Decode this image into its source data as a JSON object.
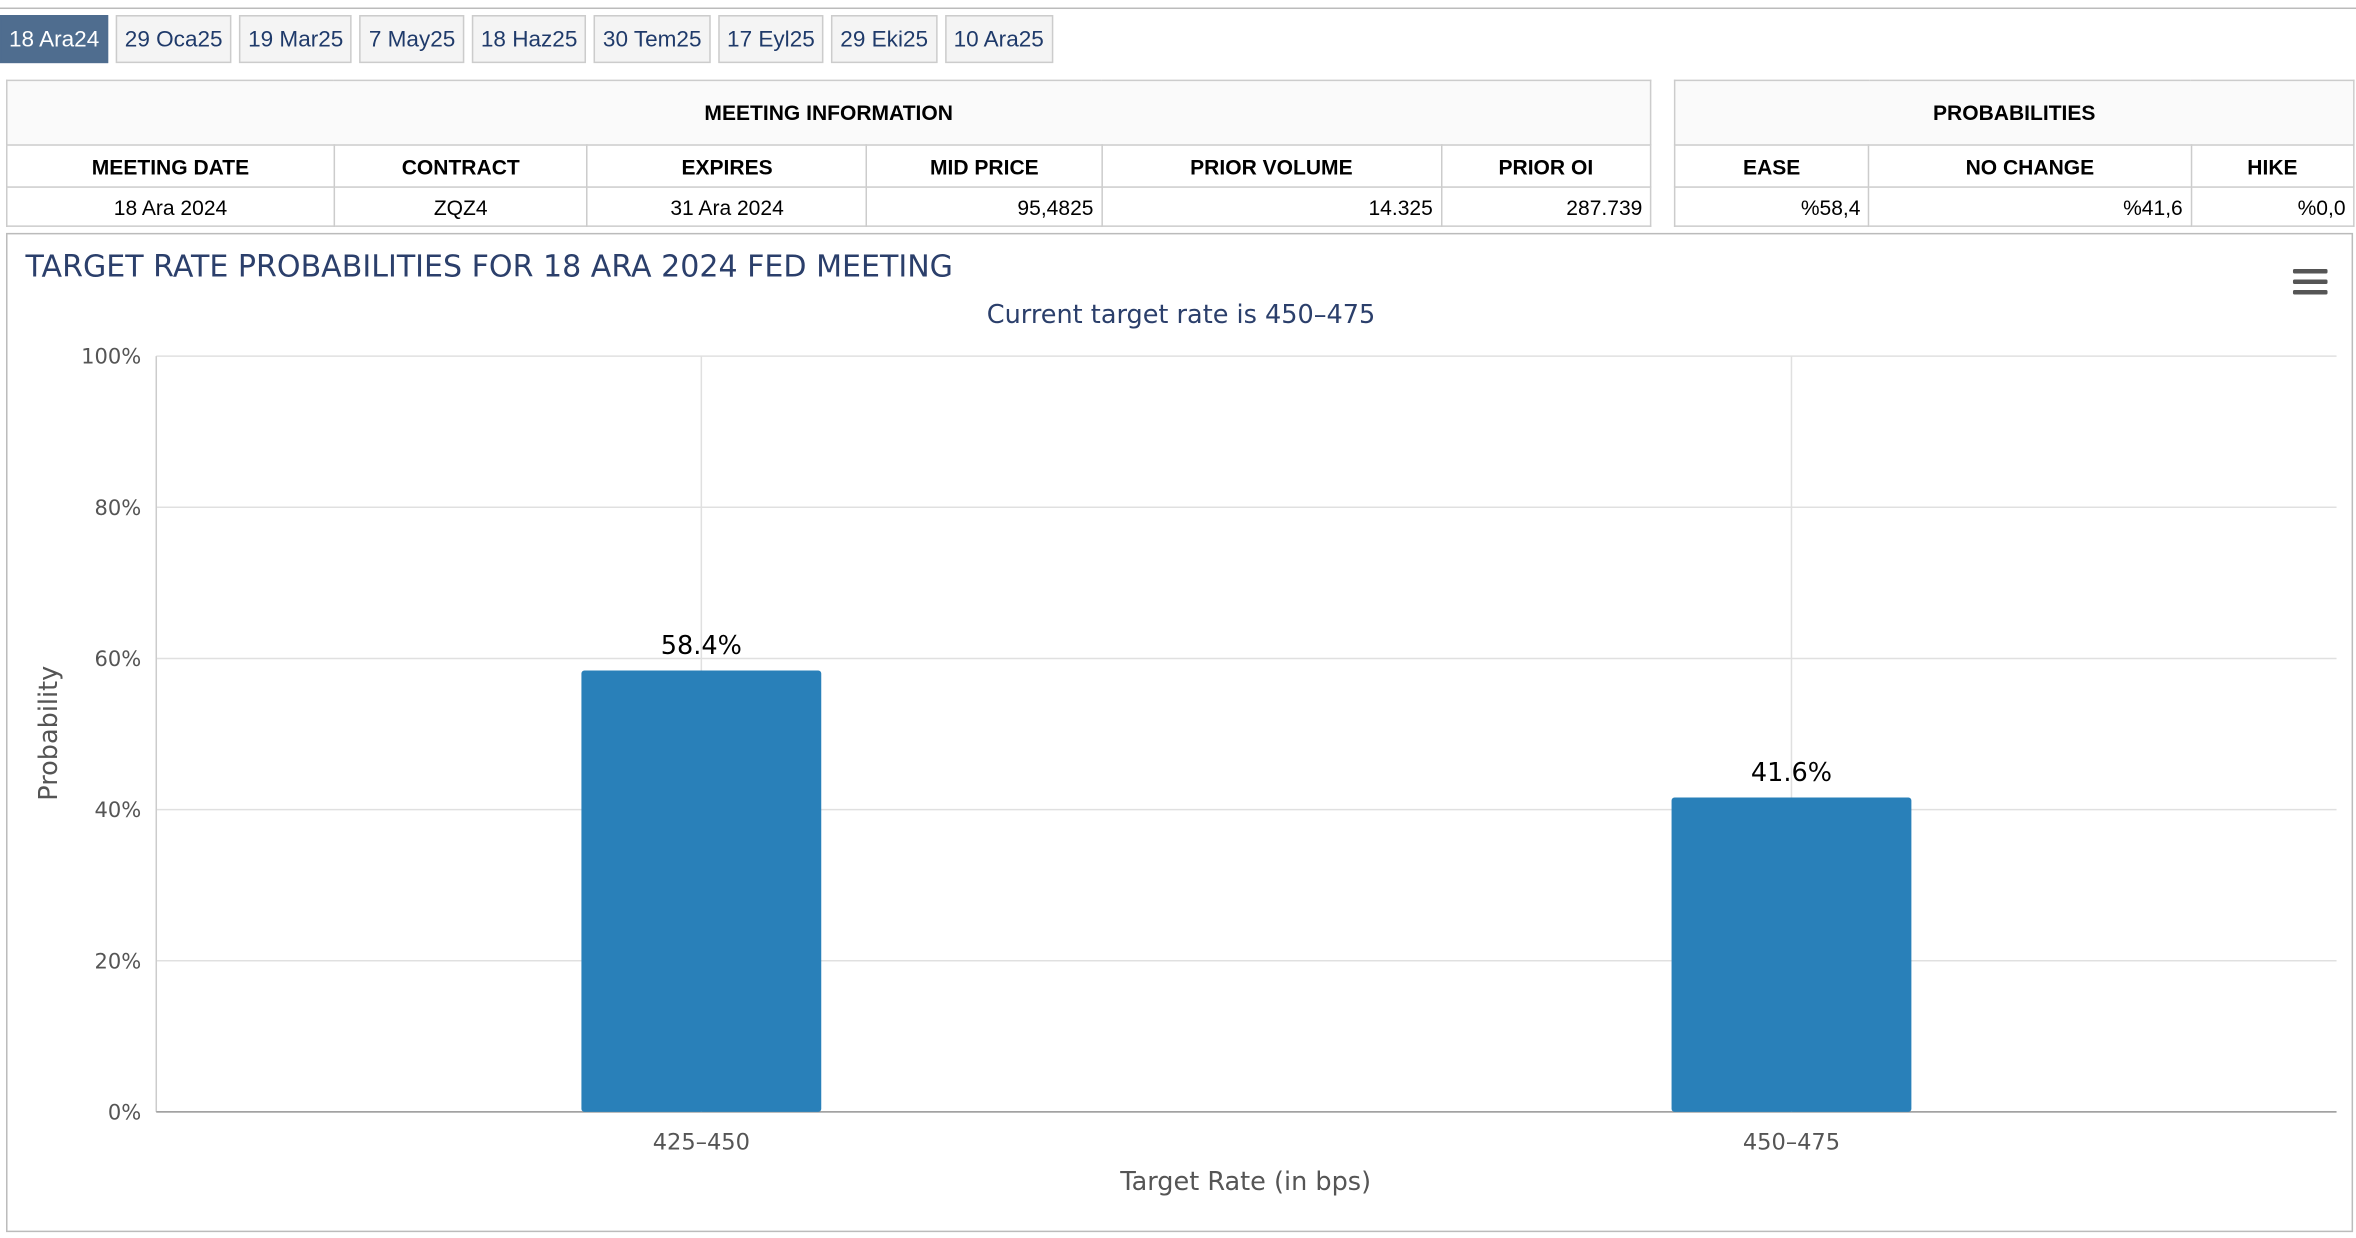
{
  "tabs": [
    "18 Ara24",
    "29 Oca25",
    "19 Mar25",
    "7 May25",
    "18 Haz25",
    "30 Tem25",
    "17 Eyl25",
    "29 Eki25",
    "10 Ara25"
  ],
  "active_tab": 0,
  "meeting_info": {
    "title": "MEETING INFORMATION",
    "headers": [
      "MEETING DATE",
      "CONTRACT",
      "EXPIRES",
      "MID PRICE",
      "PRIOR VOLUME",
      "PRIOR OI"
    ],
    "rows": [
      [
        "18 Ara 2024",
        "ZQZ4",
        "31 Ara 2024",
        "95,4825",
        "14.325",
        "287.739"
      ]
    ]
  },
  "probabilities": {
    "title": "PROBABILITIES",
    "headers": [
      "EASE",
      "NO CHANGE",
      "HIKE"
    ],
    "rows": [
      [
        "%58,4",
        "%41,6",
        "%0,0"
      ]
    ]
  },
  "chart_data": {
    "type": "bar",
    "title": "TARGET RATE PROBABILITIES FOR 18 ARA 2024 FED MEETING",
    "subtitle": "Current target rate is 450–475",
    "categories": [
      "425–450",
      "450–475"
    ],
    "values": [
      58.4,
      41.6
    ],
    "value_labels": [
      "58.4%",
      "41.6%"
    ],
    "color": "#2980b9",
    "ylim": [
      0,
      100
    ],
    "yticks": [
      {
        "value": 0,
        "label": "0%"
      },
      {
        "value": 20,
        "label": "20%"
      },
      {
        "value": 40,
        "label": "40%"
      },
      {
        "value": 60,
        "label": "60%"
      },
      {
        "value": 80,
        "label": "80%"
      },
      {
        "value": 100,
        "label": "100%"
      }
    ],
    "xlabel": "Target Rate (in bps)",
    "ylabel": "Probability",
    "grid": true
  }
}
